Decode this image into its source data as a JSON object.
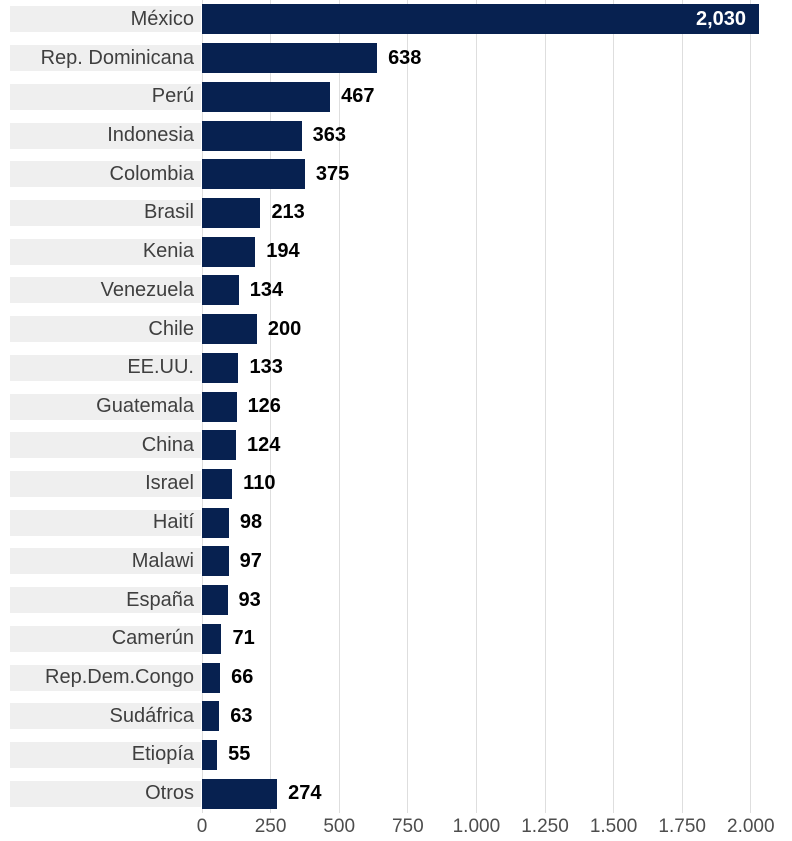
{
  "chart_data": {
    "type": "bar",
    "orientation": "horizontal",
    "title": "",
    "xlabel": "",
    "ylabel": "",
    "xlim": [
      0,
      2000
    ],
    "grid": true,
    "legend": false,
    "categories": [
      "México",
      "Rep. Dominicana",
      "Perú",
      "Indonesia",
      "Colombia",
      "Brasil",
      "Kenia",
      "Venezuela",
      "Chile",
      "EE.UU.",
      "Guatemala",
      "China",
      "Israel",
      "Haití",
      "Malawi",
      "España",
      "Camerún",
      "Rep.Dem.Congo",
      "Sudáfrica",
      "Etiopía",
      "Otros"
    ],
    "values": [
      2030,
      638,
      467,
      363,
      375,
      213,
      194,
      134,
      200,
      133,
      126,
      124,
      110,
      98,
      97,
      93,
      71,
      66,
      63,
      55,
      274
    ],
    "value_labels": [
      "2,030",
      "638",
      "467",
      "363",
      "375",
      "213",
      "194",
      "134",
      "200",
      "133",
      "126",
      "124",
      "110",
      "98",
      "97",
      "93",
      "71",
      "66",
      "63",
      "55",
      "274"
    ],
    "x_tick_values": [
      0,
      250,
      500,
      750,
      1000,
      1250,
      1500,
      1750,
      2000
    ],
    "x_tick_labels": [
      "0",
      "250",
      "500",
      "750",
      "1.000",
      "1.250",
      "1.500",
      "1.750",
      "2.000"
    ],
    "colors": {
      "bar": "#072150",
      "row_band": "#efefef",
      "gridline": "#dedede",
      "category_text": "#3f3f3f",
      "value_text": "#000000",
      "value_text_inside": "#ffffff",
      "axis_text": "#4d4d4d",
      "background": "#ffffff"
    }
  }
}
